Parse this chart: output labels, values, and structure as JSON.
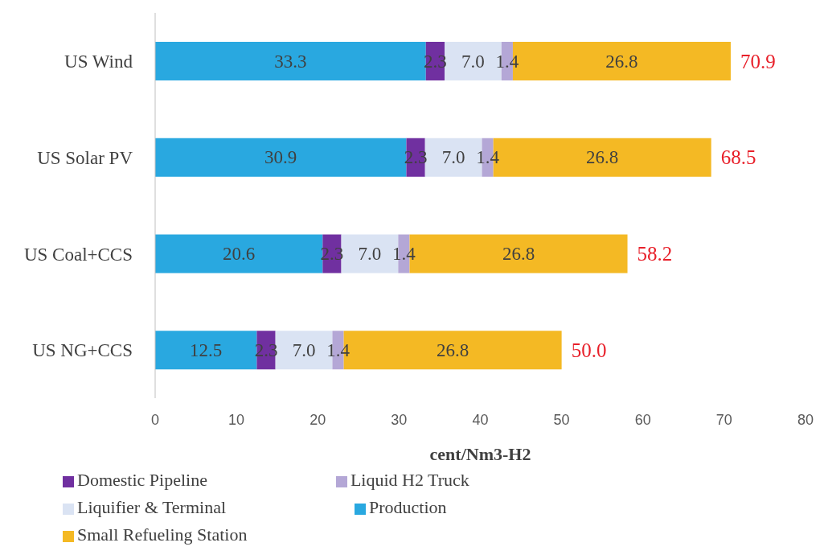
{
  "chart_data": {
    "type": "bar",
    "orientation": "horizontal",
    "stacked": true,
    "xlabel": "cent/Nm3-H2",
    "categories": [
      "US Wind",
      "US Solar PV",
      "US Coal+CCS",
      "US NG+CCS"
    ],
    "series": [
      {
        "name": "Production",
        "color": "#29a8e0",
        "values": [
          33.3,
          30.9,
          20.6,
          12.5
        ],
        "value_labels": [
          "33.3",
          "30.9",
          "20.6",
          "12.5"
        ]
      },
      {
        "name": "Domestic Pipeline",
        "color": "#7030a0",
        "values": [
          2.3,
          2.3,
          2.3,
          2.3
        ],
        "value_labels": [
          "2.3",
          "2.3",
          "2.3",
          "2.3"
        ]
      },
      {
        "name": "Liquifier & Terminal",
        "color": "#dae3f3",
        "values": [
          7.0,
          7.0,
          7.0,
          7.0
        ],
        "value_labels": [
          "7.0",
          "7.0",
          "7.0",
          "7.0"
        ]
      },
      {
        "name": "Liquid H2 Truck",
        "color": "#b4a7d6",
        "values": [
          1.4,
          1.4,
          1.4,
          1.4
        ],
        "value_labels": [
          "1.4",
          "1.4",
          "1.4",
          "1.4"
        ]
      },
      {
        "name": "Small Refueling Station",
        "color": "#f4b924",
        "values": [
          26.8,
          26.8,
          26.8,
          26.8
        ],
        "value_labels": [
          "26.8",
          "26.8",
          "26.8",
          "26.8"
        ]
      }
    ],
    "totals": [
      "70.9",
      "68.5",
      "58.2",
      "50.0"
    ],
    "xlim": [
      0,
      80
    ],
    "xticks": [
      0,
      10,
      20,
      30,
      40,
      50,
      60,
      70,
      80
    ],
    "grid": false,
    "legend": "bottom"
  }
}
